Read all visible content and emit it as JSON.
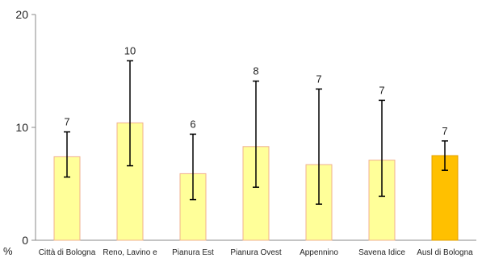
{
  "chart_data": {
    "type": "bar",
    "title": "",
    "xlabel": "",
    "ylabel": "%",
    "ylim": [
      0,
      20
    ],
    "yticks": [
      0,
      10,
      20
    ],
    "grid": false,
    "categories": [
      "Città di Bologna",
      "Reno, Lavino e",
      "Pianura Est",
      "Pianura Ovest",
      "Appennino",
      "Savena Idice",
      "Ausl di Bologna"
    ],
    "values": [
      7.4,
      10.4,
      5.9,
      8.3,
      6.7,
      7.1,
      7.5
    ],
    "data_labels": [
      "7",
      "10",
      "6",
      "8",
      "7",
      "7",
      "7"
    ],
    "error_low": [
      5.6,
      6.6,
      3.6,
      4.7,
      3.2,
      3.9,
      6.2
    ],
    "error_high": [
      9.6,
      15.9,
      9.4,
      14.1,
      13.4,
      12.4,
      8.8
    ],
    "colors": {
      "bar_fill": "#ffff99",
      "bar_border": "#f0b090",
      "highlight_fill": "#ffc000",
      "highlight_border": "#e3a000",
      "error_bar": "#000000",
      "axis": "#888888"
    },
    "highlight_index": 6
  }
}
